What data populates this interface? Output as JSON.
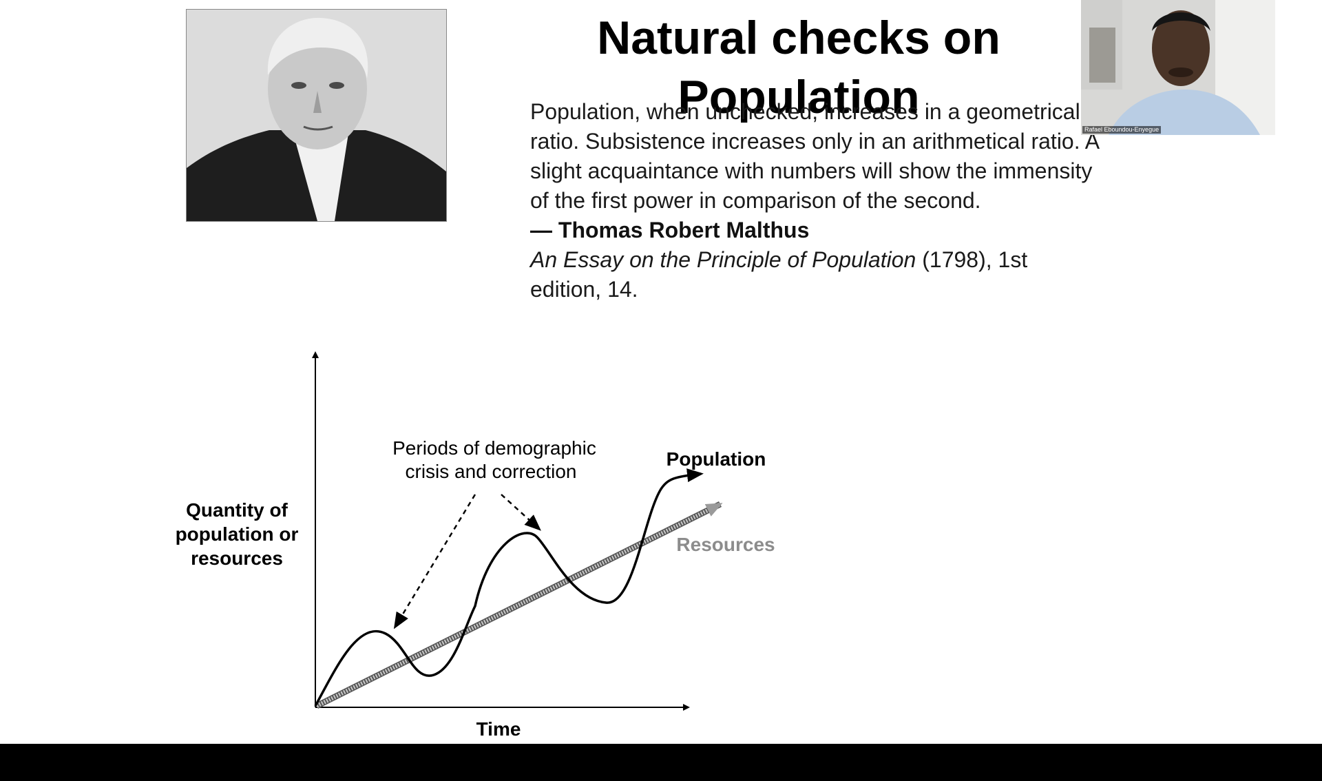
{
  "slide": {
    "title": "Natural checks on Population",
    "quote": {
      "text": "Population, when unchecked, increases in a geometrical ratio. Subsistence increases only in an arithmetical ratio. A slight acquaintance with numbers will show the immensity of the first power in comparison of the second.",
      "author": "— Thomas Robert Malthus",
      "citation_title": "An Essay on the Principle of Population",
      "citation_rest": " (1798), 1st edition, 14."
    }
  },
  "webcam": {
    "participant_name": "Rafael Eboundou-Enyegue"
  },
  "chart": {
    "y_label_lines": [
      "Quantity of",
      "population or",
      "resources"
    ],
    "x_label": "Time",
    "annotation_lines": [
      "Periods of demographic",
      "crisis and correction"
    ],
    "population_label": "Population",
    "resources_label": "Resources",
    "population_color": "#000000",
    "resources_color": "#8c8c8c"
  }
}
